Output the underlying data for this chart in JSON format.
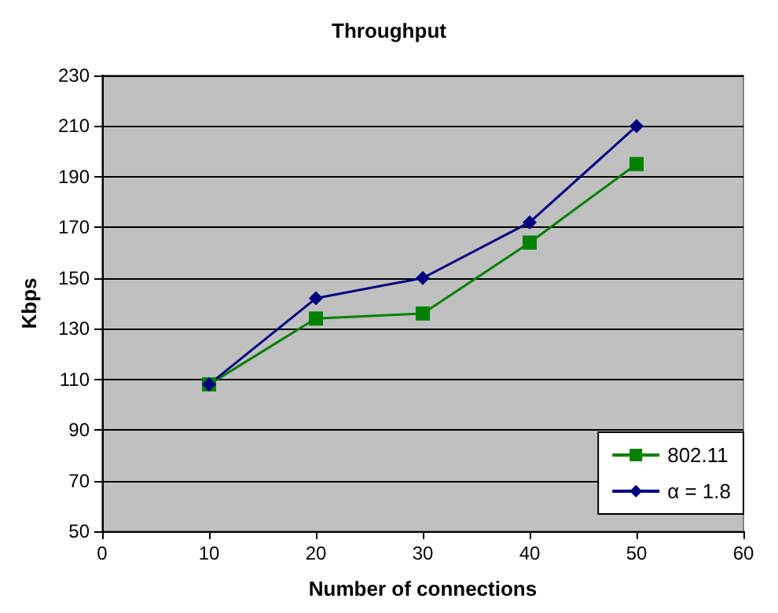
{
  "chart_data": {
    "type": "line",
    "title": "Throughput",
    "xlabel": "Number of connections",
    "ylabel": "Kbps",
    "x": [
      10,
      20,
      30,
      40,
      50
    ],
    "series": [
      {
        "name": "802.11",
        "color": "#008000",
        "marker": "square",
        "values": [
          108,
          134,
          136,
          164,
          195
        ]
      },
      {
        "name": "α = 1.8",
        "color": "#000080",
        "marker": "diamond",
        "values": [
          108,
          142,
          150,
          172,
          210
        ]
      }
    ],
    "xlim": [
      0,
      60
    ],
    "xticks": [
      0,
      10,
      20,
      30,
      40,
      50,
      60
    ],
    "ylim": [
      50,
      230
    ],
    "yticks": [
      50,
      70,
      90,
      110,
      130,
      150,
      170,
      190,
      210,
      230
    ],
    "grid": "y",
    "legend": "bottom right"
  }
}
